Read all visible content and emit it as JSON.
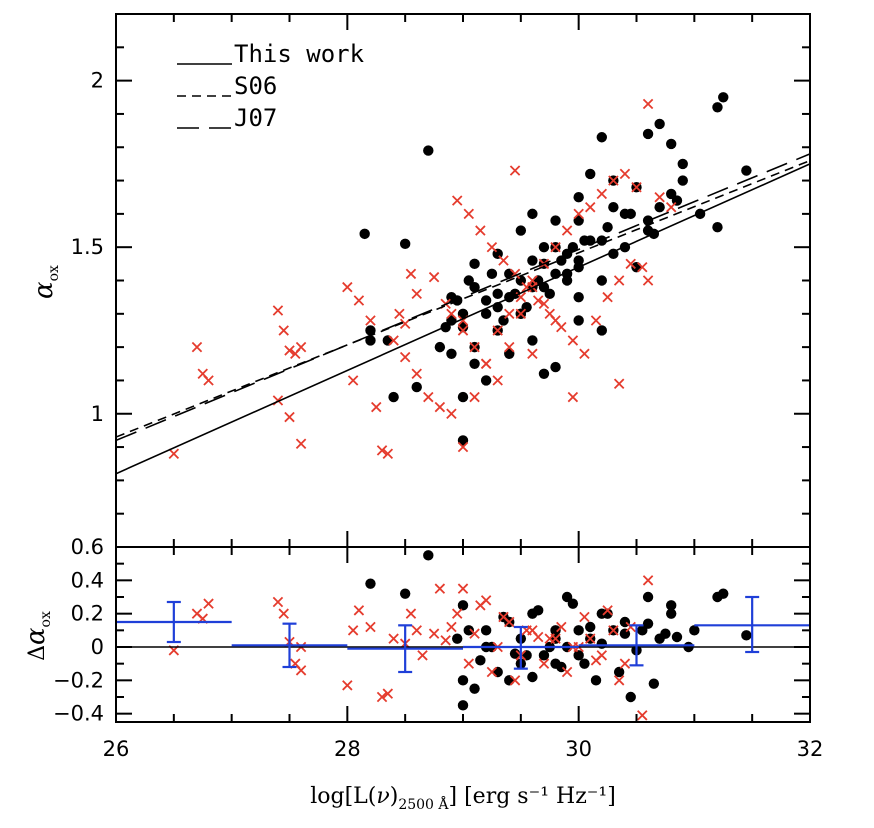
{
  "chart_data": [
    {
      "type": "scatter",
      "panel": "top",
      "title": "",
      "xlabel": "log[L(ν)2500 Å] [erg s⁻¹ Hz⁻¹]",
      "xlabel_parts": {
        "main": "log[L(",
        "nu": "ν",
        "close": ")",
        "sub": "2500 Å",
        "rest": "] [erg s⁻¹ Hz⁻¹]"
      },
      "ylabel": "α_ox",
      "ylabel_parts": {
        "main": "α",
        "sub": "ox"
      },
      "xlim": [
        26,
        32
      ],
      "ylim": [
        0.6,
        2.2
      ],
      "x_ticks": [
        26,
        28,
        30,
        32
      ],
      "x_tick_labels": [
        "26",
        "28",
        "30",
        "32"
      ],
      "y_ticks": [
        1,
        1.5,
        2
      ],
      "y_tick_labels": [
        "1",
        "1.5",
        "2"
      ],
      "grid": false,
      "legend": {
        "position": "top-left",
        "entries": [
          {
            "label": "This work",
            "style": "solid"
          },
          {
            "label": "S06",
            "style": "short-dash"
          },
          {
            "label": "J07",
            "style": "long-dash"
          }
        ]
      },
      "lines": [
        {
          "name": "This work",
          "style": "solid",
          "x": [
            26,
            32
          ],
          "y": [
            0.82,
            1.75
          ]
        },
        {
          "name": "S06",
          "style": "short-dash",
          "x": [
            26,
            32
          ],
          "y": [
            0.93,
            1.76
          ]
        },
        {
          "name": "J07",
          "style": "long-dash",
          "x": [
            26,
            32
          ],
          "y": [
            0.92,
            1.78
          ]
        }
      ],
      "series": [
        {
          "name": "black-circles",
          "marker": "filled-circle",
          "color": "#000000",
          "x": [
            28.15,
            28.2,
            28.4,
            28.5,
            28.7,
            29.0,
            28.9,
            29.1,
            29.3,
            29.5,
            29.6,
            29.8,
            30.0,
            30.1,
            30.2,
            30.3,
            30.5,
            30.6,
            30.7,
            30.8,
            31.2,
            31.25,
            31.45,
            30.9,
            30.0,
            29.7,
            29.4,
            29.2,
            29.0,
            28.8,
            29.5,
            29.9,
            30.4,
            30.6,
            30.7,
            29.6,
            29.3,
            29.1,
            28.9,
            28.35,
            28.6,
            28.2,
            29.8,
            30.2,
            30.0,
            29.9,
            29.7,
            29.5,
            29.3,
            29.1,
            28.9,
            29.0,
            29.2,
            29.4,
            29.6,
            29.8,
            30.0,
            30.2,
            30.4,
            30.6,
            30.8,
            29.3,
            29.5,
            29.7,
            29.9,
            30.1,
            30.3,
            30.5,
            29.2,
            29.4,
            29.6,
            29.8,
            30.0,
            30.2,
            29.1,
            29.35,
            29.55,
            29.75,
            29.95,
            28.95,
            29.05,
            29.25,
            29.45,
            29.65,
            29.85,
            30.05,
            30.25,
            30.45,
            30.65,
            30.85,
            31.05,
            31.2,
            29.0,
            28.85,
            30.0,
            29.7,
            30.3,
            30.9
          ],
          "y": [
            1.54,
            1.25,
            1.05,
            1.51,
            1.79,
            0.92,
            1.35,
            1.45,
            1.48,
            1.55,
            1.6,
            1.58,
            1.65,
            1.72,
            1.83,
            1.7,
            1.68,
            1.84,
            1.87,
            1.81,
            1.92,
            1.95,
            1.73,
            1.75,
            1.28,
            1.12,
            1.18,
            1.1,
            1.05,
            1.2,
            1.3,
            1.4,
            1.5,
            1.55,
            1.62,
            1.22,
            1.32,
            1.38,
            1.28,
            1.22,
            1.08,
            1.22,
            1.14,
            1.25,
            1.35,
            1.42,
            1.38,
            1.3,
            1.25,
            1.15,
            1.18,
            1.26,
            1.34,
            1.42,
            1.46,
            1.5,
            1.44,
            1.52,
            1.6,
            1.58,
            1.66,
            1.36,
            1.4,
            1.45,
            1.48,
            1.52,
            1.48,
            1.44,
            1.3,
            1.35,
            1.38,
            1.42,
            1.46,
            1.4,
            1.2,
            1.28,
            1.32,
            1.36,
            1.5,
            1.34,
            1.4,
            1.42,
            1.36,
            1.4,
            1.46,
            1.52,
            1.56,
            1.6,
            1.54,
            1.64,
            1.6,
            1.56,
            1.3,
            1.26,
            1.58,
            1.5,
            1.62,
            1.7
          ]
        },
        {
          "name": "red-crosses",
          "marker": "x",
          "color": "#e53c2e",
          "x": [
            26.5,
            26.7,
            26.75,
            26.8,
            27.4,
            27.4,
            27.5,
            27.5,
            27.55,
            27.6,
            27.6,
            27.45,
            28.0,
            28.1,
            28.05,
            28.2,
            28.3,
            28.35,
            28.4,
            28.5,
            28.55,
            28.25,
            28.5,
            28.45,
            28.6,
            28.7,
            28.8,
            28.9,
            29.0,
            29.1,
            29.2,
            29.3,
            29.4,
            29.5,
            29.6,
            29.7,
            29.8,
            29.9,
            30.0,
            30.1,
            30.2,
            30.3,
            30.4,
            30.5,
            30.6,
            30.7,
            30.8,
            28.95,
            29.05,
            29.15,
            29.25,
            29.35,
            29.45,
            29.55,
            29.65,
            29.75,
            29.85,
            29.95,
            30.05,
            30.15,
            30.25,
            30.35,
            30.45,
            28.9,
            29.0,
            29.1,
            29.2,
            29.3,
            29.4,
            29.5,
            29.6,
            29.7,
            29.8,
            30.55,
            30.35,
            29.45,
            29.0,
            29.6,
            28.6,
            28.75,
            28.85,
            29.95,
            30.6
          ],
          "y": [
            0.88,
            1.2,
            1.12,
            1.1,
            1.31,
            1.04,
            0.99,
            1.19,
            1.18,
            1.2,
            0.91,
            1.25,
            1.38,
            1.34,
            1.1,
            1.28,
            0.89,
            0.88,
            1.22,
            1.27,
            1.42,
            1.02,
            1.17,
            1.3,
            1.12,
            1.05,
            1.02,
            1.0,
            0.9,
            1.05,
            1.15,
            1.25,
            1.3,
            1.35,
            1.4,
            1.45,
            1.5,
            1.55,
            1.6,
            1.62,
            1.66,
            1.7,
            1.72,
            1.68,
            1.93,
            1.65,
            1.62,
            1.64,
            1.6,
            1.55,
            1.5,
            1.46,
            1.42,
            1.38,
            1.34,
            1.3,
            1.26,
            1.22,
            1.18,
            1.28,
            1.35,
            1.4,
            1.45,
            1.3,
            1.25,
            1.2,
            1.15,
            1.1,
            1.2,
            1.3,
            1.38,
            1.33,
            1.28,
            1.44,
            1.09,
            1.73,
            1.28,
            1.18,
            1.36,
            1.41,
            1.33,
            1.05,
            1.4
          ]
        }
      ]
    },
    {
      "type": "scatter",
      "panel": "bottom",
      "xlabel": "log[L(ν)2500 Å] [erg s⁻¹ Hz⁻¹]",
      "ylabel": "Δα_ox",
      "ylabel_parts": {
        "delta": "Δ",
        "main": "α",
        "sub": "ox"
      },
      "xlim": [
        26,
        32
      ],
      "ylim": [
        -0.45,
        0.6
      ],
      "y_ticks": [
        -0.4,
        -0.2,
        0,
        0.2,
        0.4,
        0.6
      ],
      "y_tick_labels": [
        "−0.4",
        "−0.2",
        "0",
        "0.2",
        "0.4",
        "0.6"
      ],
      "zero_line": 0,
      "binned_means": {
        "color": "#1f3fd8",
        "bins": [
          {
            "x_center": 26.5,
            "x_from": 26.0,
            "x_to": 27.0,
            "y": 0.15,
            "err_low": 0.03,
            "err_high": 0.27
          },
          {
            "x_center": 27.5,
            "x_from": 27.0,
            "x_to": 28.0,
            "y": 0.01,
            "err_low": -0.12,
            "err_high": 0.14
          },
          {
            "x_center": 28.5,
            "x_from": 28.0,
            "x_to": 29.0,
            "y": -0.01,
            "err_low": -0.15,
            "err_high": 0.13
          },
          {
            "x_center": 29.5,
            "x_from": 29.0,
            "x_to": 30.0,
            "y": 0.0,
            "err_low": -0.13,
            "err_high": 0.12
          },
          {
            "x_center": 30.5,
            "x_from": 30.0,
            "x_to": 31.0,
            "y": 0.01,
            "err_low": -0.11,
            "err_high": 0.13
          },
          {
            "x_center": 31.5,
            "x_from": 31.0,
            "x_to": 32.0,
            "y": 0.13,
            "err_low": -0.03,
            "err_high": 0.3
          }
        ]
      },
      "series": [
        {
          "name": "black-circles",
          "marker": "filled-circle",
          "color": "#000000",
          "x": [
            28.2,
            28.5,
            28.7,
            29.0,
            29.2,
            29.4,
            29.6,
            29.8,
            30.0,
            30.2,
            30.4,
            30.6,
            30.8,
            31.2,
            31.25,
            31.45,
            29.0,
            29.3,
            29.5,
            29.7,
            29.9,
            30.1,
            30.3,
            29.1,
            29.4,
            29.6,
            29.8,
            30.0,
            30.2,
            30.4,
            30.6,
            30.8,
            31.0,
            29.2,
            29.5,
            29.8,
            30.1,
            30.5,
            30.7,
            29.05,
            29.35,
            29.65,
            29.95,
            30.25,
            30.55,
            30.85,
            29.15,
            29.45,
            29.75,
            30.05,
            30.35,
            30.65,
            28.95,
            29.25,
            29.55,
            29.85,
            30.15,
            30.45,
            30.75,
            30.95,
            29.0,
            29.9
          ],
          "y": [
            0.38,
            0.32,
            0.55,
            -0.35,
            0.1,
            0.15,
            0.2,
            0.05,
            0.1,
            0.2,
            0.15,
            0.3,
            0.25,
            0.3,
            0.32,
            0.07,
            -0.2,
            -0.15,
            -0.1,
            -0.05,
            0.0,
            0.05,
            0.1,
            -0.25,
            -0.2,
            -0.18,
            -0.1,
            -0.05,
            0.02,
            0.08,
            0.14,
            0.2,
            0.1,
            0.0,
            0.05,
            0.1,
            0.12,
            -0.02,
            0.05,
            0.1,
            0.18,
            0.22,
            0.26,
            0.2,
            0.1,
            0.06,
            -0.08,
            -0.04,
            0.0,
            -0.1,
            -0.15,
            -0.22,
            0.05,
            0.0,
            -0.05,
            -0.12,
            -0.2,
            -0.3,
            0.08,
            0.0,
            0.25,
            0.3
          ]
        },
        {
          "name": "red-crosses",
          "marker": "x",
          "color": "#e53c2e",
          "x": [
            26.5,
            26.7,
            26.75,
            26.8,
            27.4,
            27.45,
            27.5,
            27.55,
            27.6,
            27.6,
            28.0,
            28.05,
            28.1,
            28.2,
            28.3,
            28.35,
            28.4,
            28.5,
            28.55,
            28.6,
            28.8,
            29.0,
            29.2,
            29.4,
            29.6,
            29.8,
            30.0,
            30.2,
            30.4,
            30.6,
            30.55,
            30.35,
            28.9,
            29.1,
            29.3,
            29.5,
            29.7,
            29.9,
            30.1,
            30.3,
            28.95,
            29.15,
            29.35,
            29.55,
            29.75,
            29.95,
            30.15,
            30.45,
            29.05,
            29.25,
            29.45,
            29.65,
            29.85,
            30.05,
            30.25,
            28.85,
            28.75,
            28.65
          ],
          "y": [
            -0.02,
            0.2,
            0.17,
            0.26,
            0.27,
            0.2,
            0.03,
            -0.1,
            -0.14,
            0.0,
            -0.23,
            0.1,
            0.22,
            0.12,
            -0.3,
            -0.28,
            0.05,
            0.02,
            0.2,
            0.1,
            0.35,
            0.35,
            0.28,
            0.15,
            0.1,
            0.05,
            0.0,
            -0.05,
            -0.1,
            0.4,
            -0.41,
            -0.2,
            0.12,
            0.08,
            0.0,
            -0.05,
            -0.1,
            -0.15,
            0.05,
            0.1,
            0.2,
            0.25,
            0.18,
            0.1,
            0.05,
            0.0,
            -0.08,
            0.12,
            -0.1,
            -0.15,
            -0.2,
            0.06,
            0.12,
            0.18,
            0.22,
            0.04,
            0.08,
            -0.05
          ]
        }
      ]
    }
  ]
}
